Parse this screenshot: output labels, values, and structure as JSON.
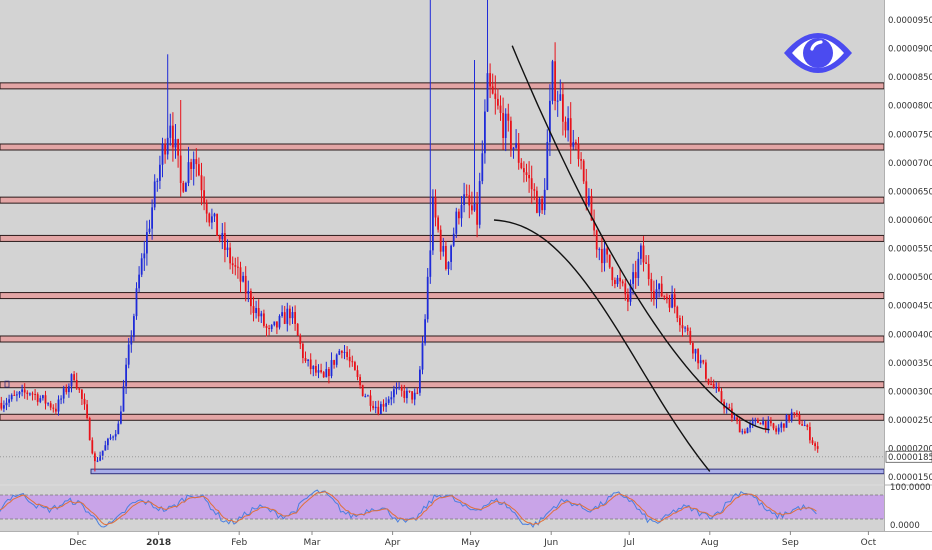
{
  "chart_data": {
    "type": "candlestick",
    "price_axis": {
      "ylim": [
        1.38e-05,
        9.85e-05
      ],
      "ticks": [
        "0.00009500",
        "0.00009000",
        "0.00008500",
        "0.00008000",
        "0.00007500",
        "0.00007000",
        "0.00006500",
        "0.00006000",
        "0.00005500",
        "0.00005000",
        "0.00004500",
        "0.00004000",
        "0.00003500",
        "0.00003000",
        "0.00002500",
        "0.00002000",
        "0.00001500"
      ],
      "last_price_label": "0.00001856",
      "last_price": 1.856e-05
    },
    "time_axis": {
      "labels": [
        "Dec",
        "2018",
        "Feb",
        "Mar",
        "Apr",
        "May",
        "Jun",
        "Jul",
        "Aug",
        "Sep",
        "Oct"
      ],
      "bold_labels": [
        "2018"
      ]
    },
    "resistance_zones": [
      [
        8.3e-05,
        8.4e-05
      ],
      [
        7.25e-05,
        7.33e-05
      ],
      [
        6.3e-05,
        6.4e-05
      ],
      [
        5.66e-05,
        5.73e-05
      ],
      [
        4.66e-05,
        4.73e-05
      ],
      [
        3.88e-05,
        3.97e-05
      ],
      [
        3.09e-05,
        3.17e-05
      ],
      [
        2.51e-05,
        2.6e-05
      ]
    ],
    "support_zone": [
      1.56e-05,
      1.64e-05
    ],
    "colors": {
      "background": "#d3d3d3",
      "zone_fill": "#e3a5a5",
      "support_fill": "#a9aee8",
      "up_candle": "#1f2bd8",
      "down_candle": "#e8121a",
      "osc_fill": "#c9a4e8",
      "osc_line_fast": "#4a7fe0",
      "osc_line_slow": "#e0703a",
      "eye_icon": "#4b4bf0"
    },
    "series_outline": [
      [
        "2017-11-01",
        2.8e-05
      ],
      [
        "2017-11-12",
        3e-05
      ],
      [
        "2017-11-22",
        2.7e-05
      ],
      [
        "2017-11-29",
        3.3e-05
      ],
      [
        "2017-12-03",
        2.7e-05
      ],
      [
        "2017-12-07",
        1.75e-05
      ],
      [
        "2017-12-16",
        2.4e-05
      ],
      [
        "2017-12-24",
        5e-05
      ],
      [
        "2018-01-02",
        7.2e-05
      ],
      [
        "2018-01-05",
        7.8e-05
      ],
      [
        "2018-01-09",
        6.6e-05
      ],
      [
        "2018-01-14",
        7.2e-05
      ],
      [
        "2018-01-20",
        6.1e-05
      ],
      [
        "2018-01-28",
        5.3e-05
      ],
      [
        "2018-02-06",
        4.5e-05
      ],
      [
        "2018-02-12",
        4e-05
      ],
      [
        "2018-02-20",
        4.4e-05
      ],
      [
        "2018-02-26",
        3.5e-05
      ],
      [
        "2018-03-05",
        3.2e-05
      ],
      [
        "2018-03-12",
        3.8e-05
      ],
      [
        "2018-03-20",
        3e-05
      ],
      [
        "2018-03-26",
        2.7e-05
      ],
      [
        "2018-04-01",
        3e-05
      ],
      [
        "2018-04-10",
        2.9e-05
      ],
      [
        "2018-04-13",
        4.3e-05
      ],
      [
        "2018-04-16",
        6.2e-05
      ],
      [
        "2018-04-21",
        5.2e-05
      ],
      [
        "2018-04-27",
        6.4e-05
      ],
      [
        "2018-05-03",
        6e-05
      ],
      [
        "2018-05-07",
        8.3e-05
      ],
      [
        "2018-05-14",
        7.6e-05
      ],
      [
        "2018-05-21",
        6.9e-05
      ],
      [
        "2018-05-28",
        6.1e-05
      ],
      [
        "2018-06-01",
        8.5e-05
      ],
      [
        "2018-06-06",
        7.8e-05
      ],
      [
        "2018-06-12",
        6.8e-05
      ],
      [
        "2018-06-18",
        5.6e-05
      ],
      [
        "2018-06-24",
        5.1e-05
      ],
      [
        "2018-06-30",
        4.6e-05
      ],
      [
        "2018-07-05",
        5.4e-05
      ],
      [
        "2018-07-10",
        4.8e-05
      ],
      [
        "2018-07-17",
        4.6e-05
      ],
      [
        "2018-07-24",
        3.9e-05
      ],
      [
        "2018-07-31",
        3.2e-05
      ],
      [
        "2018-08-07",
        2.7e-05
      ],
      [
        "2018-08-13",
        2.3e-05
      ],
      [
        "2018-08-20",
        2.5e-05
      ],
      [
        "2018-08-26",
        2.3e-05
      ],
      [
        "2018-09-01",
        2.6e-05
      ],
      [
        "2018-09-06",
        2.4e-05
      ],
      [
        "2018-09-11",
        1.95e-05
      ]
    ],
    "oscillator": {
      "ticks": [
        "100.0000",
        "0.0000"
      ],
      "upper_band": 80,
      "lower_band": 20
    }
  }
}
